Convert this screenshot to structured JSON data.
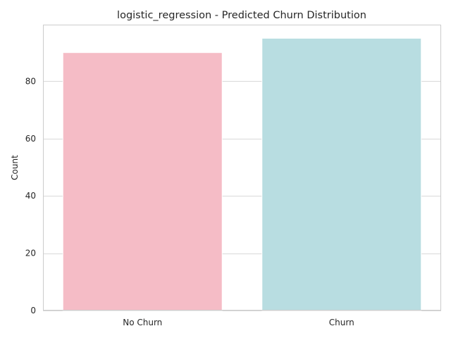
{
  "chart_data": {
    "type": "bar",
    "title": "logistic_regression - Predicted Churn Distribution",
    "xlabel": "",
    "ylabel": "Count",
    "categories": [
      "No Churn",
      "Churn"
    ],
    "values": [
      90,
      95
    ],
    "ylim": [
      0,
      99.75
    ],
    "yticks": [
      0,
      20,
      40,
      60,
      80
    ],
    "ytick_labels": [
      "0",
      "20",
      "40",
      "60",
      "80"
    ],
    "grid": true,
    "grid_axis": "y",
    "legend": "none",
    "colors": {
      "bars": [
        "#f5bcc6",
        "#b8dde1"
      ],
      "grid": "#d9d9d9",
      "axes_edge": "#cccccc",
      "background": "#ffffff"
    }
  }
}
